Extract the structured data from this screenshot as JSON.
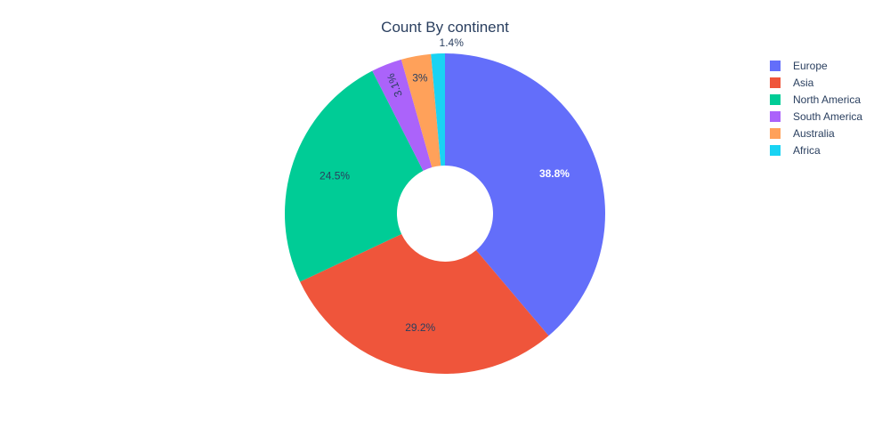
{
  "chart_data": {
    "type": "pie",
    "title": "Count By continent",
    "hole": true,
    "legend_position": "top-right",
    "slices": [
      {
        "label": "Europe",
        "value": 38.8,
        "text": "38.8%",
        "color": "#636efa",
        "text_color": "#ffffff"
      },
      {
        "label": "Asia",
        "value": 29.2,
        "text": "29.2%",
        "color": "#ef553b",
        "text_color": "#2a3f5f"
      },
      {
        "label": "North America",
        "value": 24.5,
        "text": "24.5%",
        "color": "#00cc96",
        "text_color": "#2a3f5f"
      },
      {
        "label": "South America",
        "value": 3.1,
        "text": "3.1%",
        "color": "#ab63fa",
        "text_color": "#2a3f5f"
      },
      {
        "label": "Australia",
        "value": 3.0,
        "text": "3%",
        "color": "#ffa15a",
        "text_color": "#2a3f5f"
      },
      {
        "label": "Africa",
        "value": 1.4,
        "text": "1.4%",
        "color": "#19d3f3",
        "text_color": "#2a3f5f"
      }
    ]
  }
}
